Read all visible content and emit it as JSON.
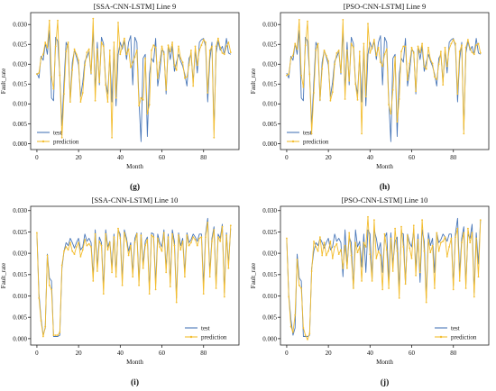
{
  "colors": {
    "test": "#4a78b9",
    "prediction": "#f3bd2f"
  },
  "chart_data": [
    {
      "type": "line",
      "title": "[SSA-CNN-LSTM] Line 9",
      "xlabel": "Month",
      "ylabel": "Fault_rate",
      "caption": "(g)",
      "xlim": [
        -3,
        97
      ],
      "ylim": [
        -0.0015,
        0.033
      ],
      "xticks": [
        "0",
        "20",
        "40",
        "60",
        "80"
      ],
      "yticks": [
        "0.000",
        "0.005",
        "0.010",
        "0.015",
        "0.020",
        "0.025",
        "0.030"
      ],
      "legend": "lower-left",
      "grid": false,
      "series": [
        {
          "name": "test",
          "values": [
            0.0178,
            0.0165,
            0.022,
            0.021,
            0.0253,
            0.0225,
            0.0285,
            0.0115,
            0.0108,
            0.0268,
            0.0258,
            0.0175,
            0.0045,
            0.0155,
            0.0255,
            0.0242,
            0.0108,
            0.0205,
            0.0235,
            0.0218,
            0.0198,
            0.0118,
            0.0155,
            0.0208,
            0.0218,
            0.0232,
            0.0175,
            0.0285,
            0.0135,
            0.0255,
            0.0148,
            0.0268,
            0.0252,
            0.0155,
            0.0125,
            0.0222,
            0.0105,
            0.0245,
            0.0095,
            0.0225,
            0.0255,
            0.0238,
            0.0258,
            0.0212,
            0.0255,
            0.0272,
            0.0148,
            0.0268,
            0.0255,
            0.0108,
            0.0005,
            0.0215,
            0.0225,
            0.0018,
            0.0175,
            0.0215,
            0.0205,
            0.0265,
            0.0145,
            0.0182,
            0.0235,
            0.0232,
            0.0125,
            0.0245,
            0.0212,
            0.0245,
            0.0182,
            0.0205,
            0.0225,
            0.0208,
            0.0195,
            0.0175,
            0.0145,
            0.0215,
            0.0225,
            0.0155,
            0.0235,
            0.0178,
            0.0255,
            0.0262,
            0.0265,
            0.0245,
            0.0105,
            0.0212,
            0.0255,
            0.0035,
            0.0228,
            0.0258,
            0.0235,
            0.0245,
            0.0225,
            0.0265,
            0.0228,
            0.0225
          ]
        },
        {
          "name": "prediction",
          "values": [
            0.0175,
            0.0178,
            0.0215,
            0.0225,
            0.0255,
            0.0242,
            0.031,
            0.0168,
            0.0138,
            0.0245,
            0.031,
            0.0172,
            0.0015,
            0.0125,
            0.0232,
            0.0255,
            0.0105,
            0.0185,
            0.0238,
            0.0225,
            0.021,
            0.0105,
            0.0128,
            0.0198,
            0.023,
            0.0238,
            0.0178,
            0.0315,
            0.0108,
            0.0238,
            0.0155,
            0.0255,
            0.0245,
            0.0148,
            0.0105,
            0.0235,
            0.0015,
            0.0255,
            0.0115,
            0.0305,
            0.0225,
            0.0245,
            0.0265,
            0.0225,
            0.0238,
            0.0192,
            0.0205,
            0.0218,
            0.0235,
            0.0095,
            0.0115,
            0.011,
            0.0215,
            0.0075,
            0.0098,
            0.0235,
            0.0248,
            0.0242,
            0.0165,
            0.0205,
            0.0245,
            0.0225,
            0.0135,
            0.0248,
            0.0232,
            0.0255,
            0.0198,
            0.0185,
            0.0245,
            0.0215,
            0.0205,
            0.0165,
            0.0168,
            0.0198,
            0.0235,
            0.0145,
            0.0245,
            0.0198,
            0.0235,
            0.0248,
            0.0262,
            0.0255,
            0.0128,
            0.0235,
            0.0245,
            0.0015,
            0.0245,
            0.0265,
            0.0242,
            0.0228,
            0.0225,
            0.0245,
            0.0255,
            0.023
          ]
        }
      ]
    },
    {
      "type": "line",
      "title": "[PSO-CNN-LSTM] Line 9",
      "xlabel": "Month",
      "ylabel": "Fault_rate",
      "caption": "(h)",
      "xlim": [
        -3,
        97
      ],
      "ylim": [
        -0.0015,
        0.033
      ],
      "xticks": [
        "0",
        "20",
        "40",
        "60",
        "80"
      ],
      "yticks": [
        "0.000",
        "0.005",
        "0.010",
        "0.015",
        "0.020",
        "0.025",
        "0.030"
      ],
      "legend": "lower-left",
      "grid": false,
      "series": [
        {
          "name": "test",
          "values": [
            0.0178,
            0.0165,
            0.022,
            0.021,
            0.0253,
            0.0225,
            0.0285,
            0.0115,
            0.0108,
            0.0268,
            0.0258,
            0.0175,
            0.0045,
            0.0155,
            0.0255,
            0.0242,
            0.0108,
            0.0205,
            0.0235,
            0.0218,
            0.0198,
            0.0118,
            0.0155,
            0.0208,
            0.0218,
            0.0232,
            0.0175,
            0.0285,
            0.0135,
            0.0255,
            0.0148,
            0.0268,
            0.0252,
            0.0155,
            0.0125,
            0.0222,
            0.0105,
            0.0245,
            0.0095,
            0.0225,
            0.0255,
            0.0238,
            0.0258,
            0.0212,
            0.0255,
            0.0272,
            0.0148,
            0.0268,
            0.0255,
            0.0108,
            0.0005,
            0.0215,
            0.0225,
            0.0018,
            0.0175,
            0.0215,
            0.0205,
            0.0265,
            0.0145,
            0.0182,
            0.0235,
            0.0232,
            0.0125,
            0.0245,
            0.0212,
            0.0245,
            0.0182,
            0.0205,
            0.0225,
            0.0208,
            0.0195,
            0.0175,
            0.0145,
            0.0215,
            0.0225,
            0.0155,
            0.0235,
            0.0178,
            0.0255,
            0.0262,
            0.0265,
            0.0245,
            0.0105,
            0.0212,
            0.0255,
            0.0035,
            0.0228,
            0.0258,
            0.0235,
            0.0245,
            0.0225,
            0.0265,
            0.0228,
            0.0225
          ]
        },
        {
          "name": "prediction",
          "values": [
            0.0172,
            0.0175,
            0.0215,
            0.0222,
            0.0252,
            0.0238,
            0.0312,
            0.0172,
            0.0142,
            0.0248,
            0.0308,
            0.0175,
            0.0025,
            0.0128,
            0.0235,
            0.0252,
            0.011,
            0.0188,
            0.0235,
            0.0222,
            0.0208,
            0.0108,
            0.013,
            0.02,
            0.0228,
            0.0235,
            0.018,
            0.0312,
            0.0112,
            0.0235,
            0.0158,
            0.0252,
            0.0242,
            0.015,
            0.011,
            0.0232,
            0.0025,
            0.0252,
            0.0118,
            0.0302,
            0.0228,
            0.0242,
            0.0262,
            0.0222,
            0.0242,
            0.0205,
            0.0195,
            0.0225,
            0.0238,
            0.0098,
            0.0075,
            0.0135,
            0.0218,
            0.0055,
            0.0112,
            0.0232,
            0.0245,
            0.0245,
            0.016,
            0.0202,
            0.0242,
            0.0228,
            0.0132,
            0.0245,
            0.023,
            0.0252,
            0.0195,
            0.0188,
            0.0242,
            0.0212,
            0.0202,
            0.0168,
            0.0162,
            0.02,
            0.0232,
            0.0148,
            0.0242,
            0.0195,
            0.0238,
            0.0252,
            0.0262,
            0.0252,
            0.0125,
            0.0232,
            0.0248,
            0.0025,
            0.0242,
            0.0262,
            0.024,
            0.023,
            0.0225,
            0.0248,
            0.0252,
            0.0228
          ]
        }
      ]
    },
    {
      "type": "line",
      "title": "[SSA-CNN-LSTM] Line 10",
      "xlabel": "Month",
      "ylabel": "Fault_rate",
      "caption": "(i)",
      "xlim": [
        -3,
        97
      ],
      "ylim": [
        -0.0015,
        0.031
      ],
      "xticks": [
        "0",
        "20",
        "40",
        "60",
        "80"
      ],
      "yticks": [
        "0.000",
        "0.005",
        "0.010",
        "0.015",
        "0.020",
        "0.025",
        "0.030"
      ],
      "legend": "lower-right",
      "grid": false,
      "series": [
        {
          "name": "test",
          "values": [
            0.0248,
            0.0105,
            0.0048,
            0.0008,
            0.0025,
            0.0198,
            0.0142,
            0.0135,
            0.0005,
            0.0005,
            0.0005,
            0.0008,
            0.0165,
            0.0205,
            0.0225,
            0.0218,
            0.0235,
            0.0225,
            0.0212,
            0.0225,
            0.0235,
            0.0208,
            0.0215,
            0.0245,
            0.0228,
            0.0235,
            0.0225,
            0.0145,
            0.0255,
            0.0168,
            0.0238,
            0.0225,
            0.0118,
            0.0255,
            0.0215,
            0.0228,
            0.0168,
            0.0245,
            0.0155,
            0.0255,
            0.0245,
            0.0138,
            0.0255,
            0.0235,
            0.0205,
            0.0225,
            0.0155,
            0.0235,
            0.0248,
            0.0135,
            0.0248,
            0.0175,
            0.0228,
            0.0238,
            0.0115,
            0.0248,
            0.0245,
            0.0128,
            0.0245,
            0.0225,
            0.0215,
            0.0255,
            0.0165,
            0.0245,
            0.0132,
            0.0255,
            0.0228,
            0.0095,
            0.0248,
            0.0218,
            0.0235,
            0.0155,
            0.0248,
            0.0225,
            0.0232,
            0.0245,
            0.0238,
            0.0228,
            0.0245,
            0.0245,
            0.0125,
            0.0245,
            0.0282,
            0.0155,
            0.0235,
            0.0262,
            0.0128,
            0.0245,
            0.0235,
            0.0268,
            0.0108,
            0.0248,
            0.0175,
            0.0258
          ]
        },
        {
          "name": "prediction",
          "values": [
            0.0248,
            0.0095,
            0.0042,
            0.0005,
            0.0028,
            0.0195,
            0.0125,
            0.0115,
            0.0008,
            0.0008,
            0.0008,
            0.0015,
            0.0172,
            0.0205,
            0.0215,
            0.0208,
            0.0225,
            0.0205,
            0.0198,
            0.0215,
            0.0225,
            0.0192,
            0.0208,
            0.0232,
            0.0218,
            0.0222,
            0.0215,
            0.0135,
            0.0245,
            0.0158,
            0.0228,
            0.0218,
            0.0105,
            0.0245,
            0.0208,
            0.0225,
            0.0155,
            0.0238,
            0.0145,
            0.0258,
            0.0235,
            0.0125,
            0.0248,
            0.0228,
            0.0195,
            0.0218,
            0.0145,
            0.0225,
            0.0245,
            0.0125,
            0.0242,
            0.0165,
            0.0218,
            0.0232,
            0.0105,
            0.0242,
            0.0238,
            0.0115,
            0.0235,
            0.0215,
            0.0205,
            0.0248,
            0.0155,
            0.0238,
            0.0122,
            0.0245,
            0.0218,
            0.0085,
            0.0242,
            0.0208,
            0.0228,
            0.0145,
            0.0242,
            0.0218,
            0.0225,
            0.0238,
            0.0232,
            0.0218,
            0.0235,
            0.0238,
            0.0105,
            0.0238,
            0.0272,
            0.0145,
            0.0228,
            0.0255,
            0.0118,
            0.0238,
            0.0228,
            0.0262,
            0.0098,
            0.0242,
            0.0165,
            0.0265
          ]
        }
      ]
    },
    {
      "type": "line",
      "title": "[PSO-CNN-LSTM] Line 10",
      "xlabel": "Month",
      "ylabel": "Fault_rate",
      "caption": "(j)",
      "xlim": [
        -3,
        97
      ],
      "ylim": [
        -0.0015,
        0.031
      ],
      "xticks": [
        "0",
        "20",
        "40",
        "60",
        "80"
      ],
      "yticks": [
        "0.000",
        "0.005",
        "0.010",
        "0.015",
        "0.020",
        "0.025",
        "0.030"
      ],
      "legend": "lower-right",
      "grid": false,
      "series": [
        {
          "name": "test",
          "values": [
            0.0235,
            0.0102,
            0.0045,
            0.0008,
            0.0025,
            0.0198,
            0.0142,
            0.0135,
            0.0005,
            0.0005,
            0.0005,
            0.0008,
            0.0165,
            0.0205,
            0.0225,
            0.0218,
            0.0235,
            0.0225,
            0.0212,
            0.0225,
            0.0235,
            0.0208,
            0.0215,
            0.0245,
            0.0228,
            0.0235,
            0.0225,
            0.0145,
            0.0255,
            0.0168,
            0.0238,
            0.0225,
            0.0118,
            0.0255,
            0.0215,
            0.0228,
            0.0168,
            0.0245,
            0.0155,
            0.0255,
            0.0245,
            0.0138,
            0.0255,
            0.0235,
            0.0205,
            0.0225,
            0.0155,
            0.0235,
            0.0248,
            0.0135,
            0.0248,
            0.0175,
            0.0228,
            0.0238,
            0.0115,
            0.0248,
            0.0245,
            0.0128,
            0.0245,
            0.0225,
            0.0215,
            0.0255,
            0.0165,
            0.0245,
            0.0132,
            0.0255,
            0.0228,
            0.0095,
            0.0248,
            0.0218,
            0.0235,
            0.0155,
            0.0248,
            0.0225,
            0.0232,
            0.0245,
            0.0238,
            0.0228,
            0.0245,
            0.0245,
            0.0125,
            0.0245,
            0.0282,
            0.0155,
            0.0235,
            0.0262,
            0.0128,
            0.0245,
            0.0235,
            0.0268,
            0.0108,
            0.0248,
            0.0175,
            0.0278
          ]
        },
        {
          "name": "prediction",
          "values": [
            0.0235,
            0.0098,
            0.0028,
            0.0015,
            0.0055,
            0.0185,
            0.0125,
            0.0118,
            0.0025,
            0.0008,
            -0.0002,
            0.0012,
            0.0158,
            0.0228,
            0.0215,
            0.0205,
            0.0238,
            0.0195,
            0.0225,
            0.0195,
            0.0205,
            0.0228,
            0.0188,
            0.0215,
            0.0222,
            0.0198,
            0.0208,
            0.0165,
            0.0218,
            0.0165,
            0.0248,
            0.0195,
            0.0118,
            0.0225,
            0.0202,
            0.0215,
            0.0135,
            0.0225,
            0.0215,
            0.0285,
            0.0198,
            0.0135,
            0.0278,
            0.0188,
            0.0205,
            0.0195,
            0.0115,
            0.0245,
            0.0208,
            0.0118,
            0.0235,
            0.0158,
            0.0258,
            0.0205,
            0.0095,
            0.0262,
            0.0215,
            0.0128,
            0.0242,
            0.0212,
            0.0188,
            0.0265,
            0.0148,
            0.0232,
            0.0155,
            0.0278,
            0.0205,
            0.0085,
            0.0232,
            0.0202,
            0.0218,
            0.0118,
            0.0248,
            0.0205,
            0.0225,
            0.0228,
            0.0238,
            0.0192,
            0.0215,
            0.0235,
            0.0115,
            0.0238,
            0.0258,
            0.0135,
            0.0225,
            0.0248,
            0.0118,
            0.0258,
            0.0225,
            0.0248,
            0.0098,
            0.0235,
            0.0145,
            0.0278
          ]
        }
      ]
    }
  ]
}
